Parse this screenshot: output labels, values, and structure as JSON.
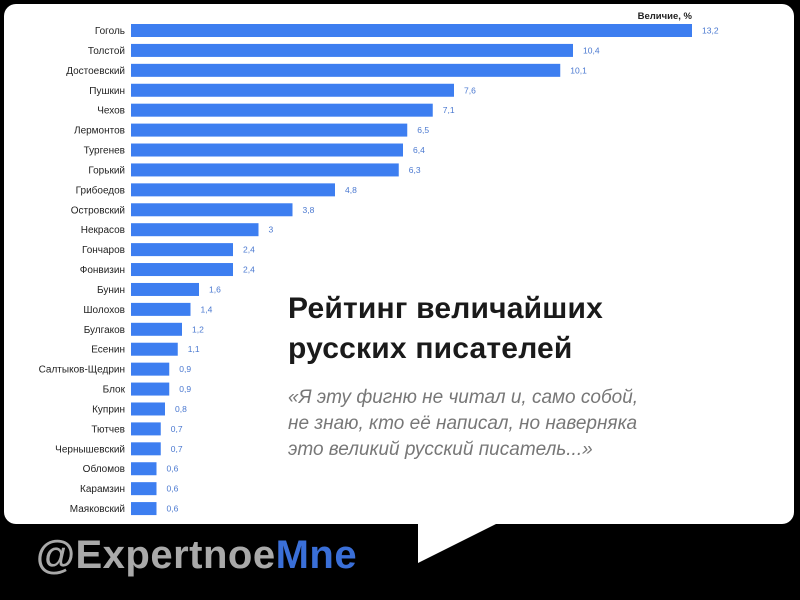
{
  "chart_data": {
    "type": "bar",
    "orientation": "horizontal",
    "legend_label": "Величие, %",
    "legend_position": "top-right",
    "bar_color": "#3d7ef0",
    "value_label_color": "#4a78d0",
    "grid": false,
    "xlim": [
      0,
      13.2
    ],
    "categories": [
      "Гоголь",
      "Толстой",
      "Достоевский",
      "Пушкин",
      "Чехов",
      "Лермонтов",
      "Тургенев",
      "Горький",
      "Грибоедов",
      "Островский",
      "Некрасов",
      "Гончаров",
      "Фонвизин",
      "Бунин",
      "Шолохов",
      "Булгаков",
      "Есенин",
      "Салтыков-Щедрин",
      "Блок",
      "Куприн",
      "Тютчев",
      "Чернышевский",
      "Обломов",
      "Карамзин",
      "Маяковский"
    ],
    "values": [
      13.2,
      10.4,
      10.1,
      7.6,
      7.1,
      6.5,
      6.4,
      6.3,
      4.8,
      3.8,
      3,
      2.4,
      2.4,
      1.6,
      1.4,
      1.2,
      1.1,
      0.9,
      0.9,
      0.8,
      0.7,
      0.7,
      0.6,
      0.6,
      0.6
    ],
    "value_labels": [
      "13,2",
      "10,4",
      "10,1",
      "7,6",
      "7,1",
      "6,5",
      "6,4",
      "6,3",
      "4,8",
      "3,8",
      "3",
      "2,4",
      "2,4",
      "1,6",
      "1,4",
      "1,2",
      "1,1",
      "0,9",
      "0,9",
      "0,8",
      "0,7",
      "0,7",
      "0,6",
      "0,6",
      "0,6"
    ]
  },
  "caption": {
    "title": "Рейтинг величайших\nрусских писателей",
    "quote": "«Я эту фигню не читал и, само собой,\nне знаю, кто её написал, но наверняка\nэто великий русский писатель...»"
  },
  "footer": {
    "handle_part1": "@Expertnoe",
    "handle_part2": "Mne",
    "accent_color": "#3a6fd8"
  }
}
